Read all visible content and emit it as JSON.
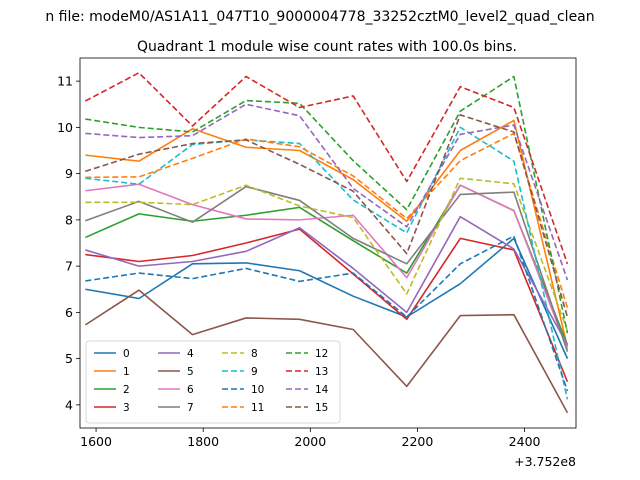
{
  "chart_data": {
    "type": "line",
    "suptitle": "n file: modeM0/AS1A11_047T10_9000004778_33252cztM0_level2_quad_clean",
    "title": "Quadrant 1 module wise count rates with 100.0s bins.",
    "offset_label": "+3.752e8",
    "xlim": [
      1570,
      2496
    ],
    "ylim": [
      3.5,
      11.5
    ],
    "x_ticks": [
      1600,
      1800,
      2000,
      2200,
      2400
    ],
    "y_ticks": [
      4,
      5,
      6,
      7,
      8,
      9,
      10,
      11
    ],
    "x": [
      1580,
      1680,
      1780,
      1880,
      1980,
      2080,
      2180,
      2280,
      2380,
      2480
    ],
    "legend_position": "lower-left",
    "series": [
      {
        "name": "0",
        "color": "#1f77b4",
        "dash": "solid",
        "values": [
          6.5,
          6.3,
          7.05,
          7.07,
          6.9,
          6.35,
          5.9,
          6.62,
          7.6,
          5.0
        ]
      },
      {
        "name": "1",
        "color": "#ff7f0e",
        "dash": "solid",
        "values": [
          9.4,
          9.27,
          9.97,
          9.57,
          9.5,
          8.87,
          7.97,
          9.5,
          10.15,
          5.25
        ]
      },
      {
        "name": "2",
        "color": "#2ca02c",
        "dash": "solid",
        "values": [
          7.62,
          8.13,
          7.97,
          8.1,
          8.27,
          7.55,
          6.85,
          8.75,
          8.2,
          5.3
        ]
      },
      {
        "name": "3",
        "color": "#d62728",
        "dash": "solid",
        "values": [
          7.25,
          7.1,
          7.23,
          7.5,
          7.8,
          6.83,
          5.85,
          7.6,
          7.35,
          4.5
        ]
      },
      {
        "name": "4",
        "color": "#9467bd",
        "dash": "solid",
        "values": [
          7.35,
          7.0,
          7.1,
          7.32,
          7.83,
          6.95,
          6.0,
          8.07,
          7.37,
          5.3
        ]
      },
      {
        "name": "5",
        "color": "#8c564b",
        "dash": "solid",
        "values": [
          5.73,
          6.48,
          5.52,
          5.88,
          5.85,
          5.63,
          4.4,
          5.93,
          5.95,
          3.83
        ]
      },
      {
        "name": "6",
        "color": "#e377c2",
        "dash": "solid",
        "values": [
          8.63,
          8.77,
          8.33,
          8.02,
          8.0,
          8.1,
          6.75,
          8.75,
          8.2,
          5.2
        ]
      },
      {
        "name": "7",
        "color": "#7f7f7f",
        "dash": "solid",
        "values": [
          7.98,
          8.4,
          7.95,
          8.72,
          8.42,
          7.6,
          7.05,
          8.55,
          8.6,
          5.15
        ]
      },
      {
        "name": "8",
        "color": "#bcbd22",
        "dash": "dashed",
        "values": [
          8.38,
          8.38,
          8.33,
          8.75,
          8.3,
          8.05,
          6.4,
          8.9,
          8.78,
          5.6
        ]
      },
      {
        "name": "9",
        "color": "#17becf",
        "dash": "dashed",
        "values": [
          8.9,
          8.77,
          9.63,
          9.73,
          9.65,
          8.43,
          7.72,
          10.0,
          9.27,
          4.12
        ]
      },
      {
        "name": "10",
        "color": "#1f77b4",
        "dash": "dashed",
        "values": [
          6.68,
          6.85,
          6.73,
          6.95,
          6.67,
          6.85,
          5.9,
          7.05,
          7.65,
          4.3
        ]
      },
      {
        "name": "11",
        "color": "#ff7f0e",
        "dash": "dashed",
        "values": [
          8.92,
          8.93,
          9.33,
          9.75,
          9.58,
          8.95,
          8.03,
          9.28,
          9.87,
          6.1
        ]
      },
      {
        "name": "12",
        "color": "#2ca02c",
        "dash": "dashed",
        "values": [
          10.18,
          10.0,
          9.9,
          10.58,
          10.52,
          9.28,
          8.22,
          10.35,
          11.1,
          5.55
        ]
      },
      {
        "name": "13",
        "color": "#d62728",
        "dash": "dashed",
        "values": [
          10.57,
          11.18,
          10.03,
          11.1,
          10.43,
          10.68,
          8.83,
          10.88,
          10.43,
          7.05
        ]
      },
      {
        "name": "14",
        "color": "#9467bd",
        "dash": "dashed",
        "values": [
          9.87,
          9.78,
          9.82,
          10.5,
          10.25,
          8.68,
          7.85,
          9.85,
          10.05,
          6.7
        ]
      },
      {
        "name": "15",
        "color": "#8c564b",
        "dash": "dashed",
        "values": [
          9.05,
          9.42,
          9.65,
          9.73,
          9.2,
          8.62,
          7.27,
          10.27,
          9.9,
          5.9
        ]
      }
    ]
  }
}
